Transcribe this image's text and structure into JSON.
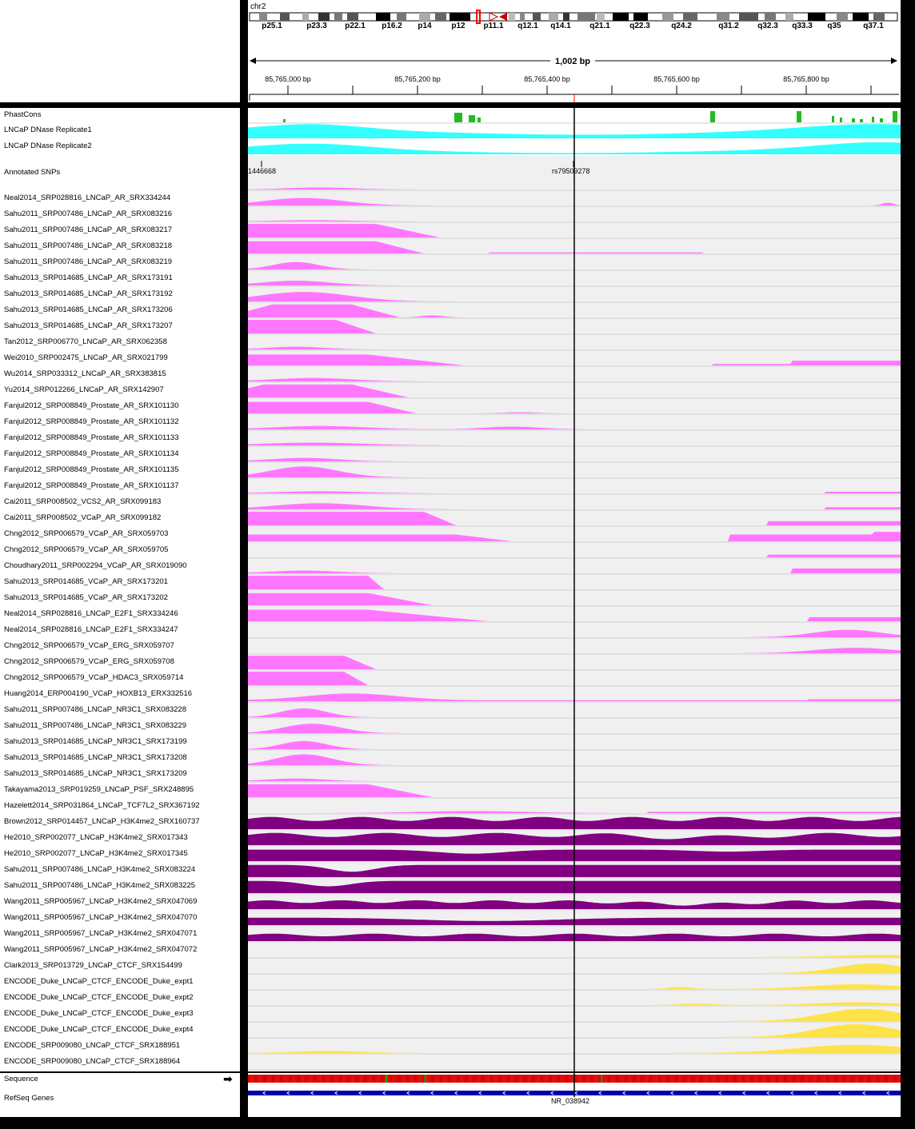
{
  "genome": {
    "chromosome": "chr2",
    "bands": [
      "p25.1",
      "p23.3",
      "p22.1",
      "p16.2",
      "p14",
      "p12",
      "p11.1",
      "q12.1",
      "q14.1",
      "q21.1",
      "q22.3",
      "q24.2",
      "q31.2",
      "q32.3",
      "q33.3",
      "q35",
      "q37.1"
    ],
    "span_label": "1,002 bp",
    "positions": [
      "85,765,000 bp",
      "85,765,200 bp",
      "85,765,400 bp",
      "85,765,600 bp",
      "85,765,800 bp"
    ]
  },
  "tracks": {
    "phastcons": "PhastCons",
    "dnase1": "LNCaP DNase Replicate1",
    "dnase2": "LNCaP DNase Replicate2",
    "snps": "Annotated SNPs",
    "snp_labels": [
      "1446668",
      "rs79509278"
    ],
    "chip": [
      "Neal2014_SRP028816_LNCaP_AR_SRX334244",
      "Sahu2011_SRP007486_LNCaP_AR_SRX083216",
      "Sahu2011_SRP007486_LNCaP_AR_SRX083217",
      "Sahu2011_SRP007486_LNCaP_AR_SRX083218",
      "Sahu2011_SRP007486_LNCaP_AR_SRX083219",
      "Sahu2013_SRP014685_LNCaP_AR_SRX173191",
      "Sahu2013_SRP014685_LNCaP_AR_SRX173192",
      "Sahu2013_SRP014685_LNCaP_AR_SRX173206",
      "Sahu2013_SRP014685_LNCaP_AR_SRX173207",
      "Tan2012_SRP006770_LNCaP_AR_SRX062358",
      "Wei2010_SRP002475_LNCaP_AR_SRX021799",
      "Wu2014_SRP033312_LNCaP_AR_SRX383815",
      "Yu2014_SRP012266_LNCaP_AR_SRX142907",
      "Fanjul2012_SRP008849_Prostate_AR_SRX101130",
      "Fanjul2012_SRP008849_Prostate_AR_SRX101132",
      "Fanjul2012_SRP008849_Prostate_AR_SRX101133",
      "Fanjul2012_SRP008849_Prostate_AR_SRX101134",
      "Fanjul2012_SRP008849_Prostate_AR_SRX101135",
      "Fanjul2012_SRP008849_Prostate_AR_SRX101137",
      "Cai2011_SRP008502_VCS2_AR_SRX099183",
      "Cai2011_SRP008502_VCaP_AR_SRX099182",
      "Chng2012_SRP006579_VCaP_AR_SRX059703",
      "Chng2012_SRP006579_VCaP_AR_SRX059705",
      "Choudhary2011_SRP002294_VCaP_AR_SRX019090",
      "Sahu2013_SRP014685_VCaP_AR_SRX173201",
      "Sahu2013_SRP014685_VCaP_AR_SRX173202",
      "Neal2014_SRP028816_LNCaP_E2F1_SRX334246",
      "Neal2014_SRP028816_LNCaP_E2F1_SRX334247",
      "Chng2012_SRP006579_VCaP_ERG_SRX059707",
      "Chng2012_SRP006579_VCaP_ERG_SRX059708",
      "Chng2012_SRP006579_VCaP_HDAC3_SRX059714",
      "Huang2014_ERP004190_VCaP_HOXB13_ERX332516",
      "Sahu2011_SRP007486_LNCaP_NR3C1_SRX083228",
      "Sahu2011_SRP007486_LNCaP_NR3C1_SRX083229",
      "Sahu2013_SRP014685_LNCaP_NR3C1_SRX173199",
      "Sahu2013_SRP014685_LNCaP_NR3C1_SRX173208",
      "Sahu2013_SRP014685_LNCaP_NR3C1_SRX173209",
      "Takayama2013_SRP019259_LNCaP_PSF_SRX248895",
      "Hazelett2014_SRP031864_LNCaP_TCF7L2_SRX367192",
      "Brown2012_SRP014457_LNCaP_H3K4me2_SRX160737",
      "He2010_SRP002077_LNCaP_H3K4me2_SRX017343",
      "He2010_SRP002077_LNCaP_H3K4me2_SRX017345",
      "Sahu2011_SRP007486_LNCaP_H3K4me2_SRX083224",
      "Sahu2011_SRP007486_LNCaP_H3K4me2_SRX083225",
      "Wang2011_SRP005967_LNCaP_H3K4me2_SRX047069",
      "Wang2011_SRP005967_LNCaP_H3K4me2_SRX047070",
      "Wang2011_SRP005967_LNCaP_H3K4me2_SRX047071",
      "Wang2011_SRP005967_LNCaP_H3K4me2_SRX047072",
      "Clark2013_SRP013729_LNCaP_CTCF_SRX154499",
      "ENCODE_Duke_LNCaP_CTCF_ENCODE_Duke_expt1",
      "ENCODE_Duke_LNCaP_CTCF_ENCODE_Duke_expt2",
      "ENCODE_Duke_LNCaP_CTCF_ENCODE_Duke_expt3",
      "ENCODE_Duke_LNCaP_CTCF_ENCODE_Duke_expt4",
      "ENCODE_SRP009080_LNCaP_CTCF_SRX188951",
      "ENCODE_SRP009080_LNCaP_CTCF_SRX188964"
    ],
    "sequence": "Sequence",
    "refseq": "RefSeq Genes",
    "gene": "NR_038942"
  },
  "colors": {
    "phastcons": "#22bb22",
    "dnase": "#33ffff",
    "ar": "#ff77ff",
    "h3k4me2": "#800080",
    "ctcf": "#ffe24a",
    "gene": "#0000b0",
    "cursor": "#000000",
    "cytoband_marker": "#ff0000"
  }
}
